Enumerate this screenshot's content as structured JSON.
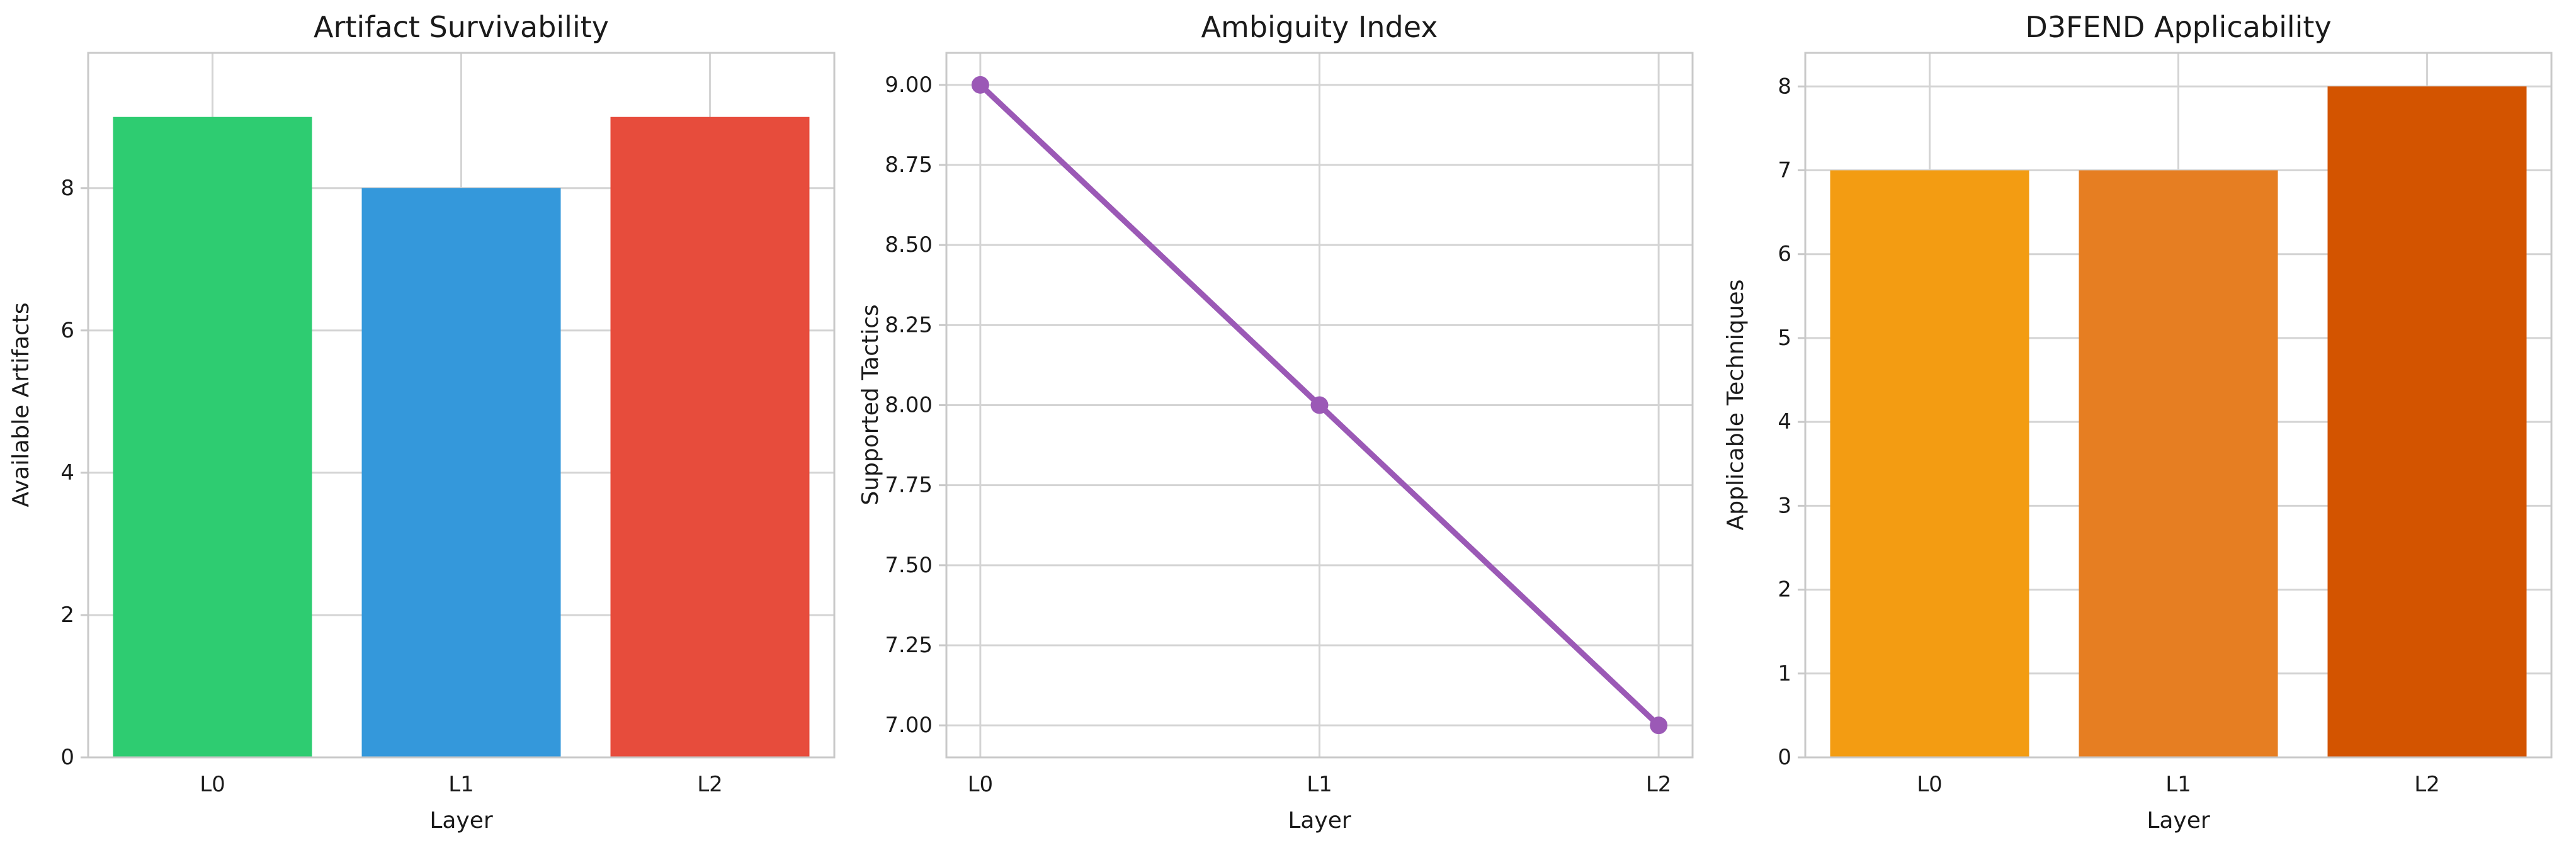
{
  "figure": {
    "background": "#ffffff",
    "grid_color": "#d4d4d4",
    "spine_color": "#c9c9c9",
    "text_color": "#1a1a1a"
  },
  "chart_data": [
    {
      "type": "bar",
      "title": "Artifact Survivability",
      "xlabel": "Layer",
      "ylabel": "Available Artifacts",
      "categories": [
        "L0",
        "L1",
        "L2"
      ],
      "values": [
        9,
        8,
        9
      ],
      "bar_colors": [
        "#2ecc71",
        "#3498db",
        "#e74c3c"
      ],
      "bar_width_frac": 0.8,
      "ylim": [
        0,
        9.9
      ],
      "yticks": [
        0,
        2,
        4,
        6,
        8
      ],
      "ytick_labels": [
        "0",
        "2",
        "4",
        "6",
        "8"
      ],
      "grid": "on",
      "legend": "none"
    },
    {
      "type": "line",
      "title": "Ambiguity Index",
      "xlabel": "Layer",
      "ylabel": "Supported Tactics",
      "categories": [
        "L0",
        "L1",
        "L2"
      ],
      "values": [
        9,
        8,
        7
      ],
      "line_color": "#9b59b6",
      "marker": "circle",
      "marker_radius": 14,
      "line_width": 9,
      "x_margin": 0.1,
      "ylim": [
        6.9,
        9.1
      ],
      "yticks": [
        7.0,
        7.25,
        7.5,
        7.75,
        8.0,
        8.25,
        8.5,
        8.75,
        9.0
      ],
      "ytick_labels": [
        "7.00",
        "7.25",
        "7.50",
        "7.75",
        "8.00",
        "8.25",
        "8.50",
        "8.75",
        "9.00"
      ],
      "grid": "on",
      "legend": "none"
    },
    {
      "type": "bar",
      "title": "D3FEND Applicability",
      "xlabel": "Layer",
      "ylabel": "Applicable Techniques",
      "categories": [
        "L0",
        "L1",
        "L2"
      ],
      "values": [
        7,
        7,
        8
      ],
      "bar_colors": [
        "#f39c12",
        "#e67e22",
        "#d35400"
      ],
      "bar_width_frac": 0.8,
      "ylim": [
        0,
        8.4
      ],
      "yticks": [
        0,
        1,
        2,
        3,
        4,
        5,
        6,
        7,
        8
      ],
      "ytick_labels": [
        "0",
        "1",
        "2",
        "3",
        "4",
        "5",
        "6",
        "7",
        "8"
      ],
      "grid": "on",
      "legend": "none"
    }
  ]
}
